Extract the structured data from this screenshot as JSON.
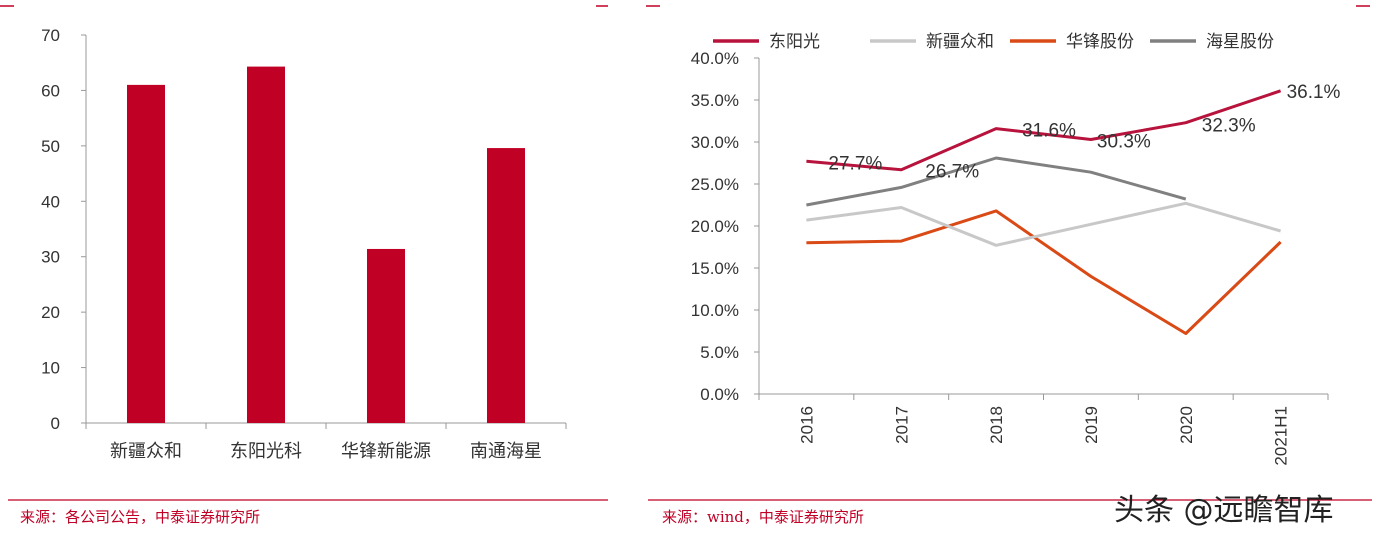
{
  "colors": {
    "accent": "#c00025",
    "axis": "#999999",
    "text": "#333333"
  },
  "left_source": "来源：各公司公告，中泰证券研究所",
  "right_source": "来源：wind，中泰证券研究所",
  "watermark": "头条 @远瞻智库",
  "chart_data": [
    {
      "type": "bar",
      "categories": [
        "新疆众和",
        "东阳光科",
        "华锋新能源",
        "南通海星"
      ],
      "values": [
        61,
        64.3,
        31.4,
        49.6
      ],
      "ylim": [
        0,
        70
      ],
      "yticks": [
        0,
        10,
        20,
        30,
        40,
        50,
        60,
        70
      ],
      "color": "#c00025",
      "grid": false
    },
    {
      "type": "line",
      "x": [
        "2016",
        "2017",
        "2018",
        "2019",
        "2020",
        "2021H1"
      ],
      "ylim": [
        0,
        40
      ],
      "yticks": [
        "0.0%",
        "5.0%",
        "10.0%",
        "15.0%",
        "20.0%",
        "25.0%",
        "30.0%",
        "35.0%",
        "40.0%"
      ],
      "grid": false,
      "legend_position": "top",
      "series": [
        {
          "name": "东阳光",
          "color": "#b8133c",
          "values": [
            27.7,
            26.7,
            31.6,
            30.3,
            32.3,
            36.1
          ],
          "labels": [
            "27.7%",
            "26.7%",
            "31.6%",
            "30.3%",
            "32.3%",
            "36.1%"
          ]
        },
        {
          "name": "新疆众和",
          "color": "#c8c8c8",
          "values": [
            20.7,
            22.2,
            17.7,
            20.2,
            22.7,
            19.4
          ]
        },
        {
          "name": "华锋股份",
          "color": "#d94a16",
          "values": [
            18.0,
            18.2,
            21.8,
            14.0,
            7.2,
            18.1
          ]
        },
        {
          "name": "海星股份",
          "color": "#808080",
          "values": [
            22.5,
            24.6,
            28.1,
            26.4,
            23.2,
            null
          ]
        }
      ]
    }
  ]
}
